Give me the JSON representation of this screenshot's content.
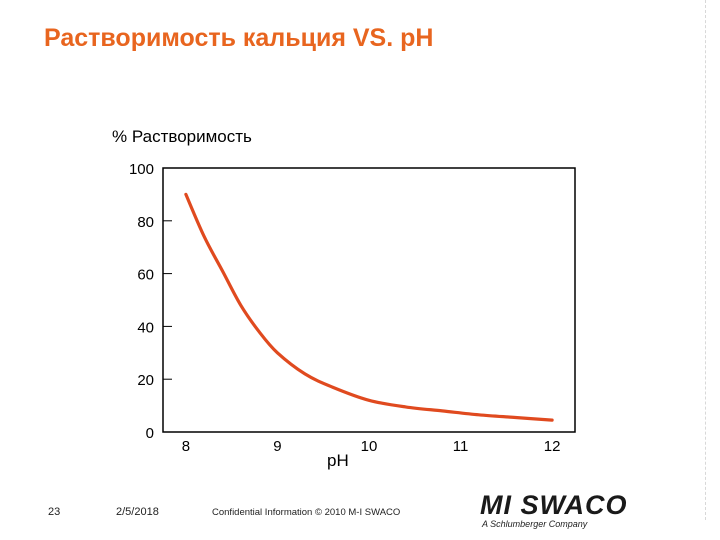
{
  "slide": {
    "title": "Растворимость кальция VS. pH",
    "page_number": "23",
    "date": "2/5/2018",
    "confidential": "Confidential Information © 2010 M-I SWACO",
    "logo_text": "MI SWACO",
    "logo_subtext": "A Schlumberger Company",
    "accent_color": "#e8651f"
  },
  "chart_data": {
    "type": "line",
    "title": "",
    "ylabel": "% Растворимость",
    "xlabel": "pH",
    "xlim": [
      7.75,
      12.25
    ],
    "ylim": [
      0,
      100
    ],
    "x_ticks": [
      8,
      9,
      10,
      11,
      12
    ],
    "y_ticks": [
      0,
      20,
      40,
      60,
      80,
      100
    ],
    "grid": false,
    "series": [
      {
        "color": "#e04a1f",
        "x": [
          8.0,
          8.2,
          8.4,
          8.6,
          8.8,
          9.0,
          9.3,
          9.6,
          10.0,
          10.4,
          10.8,
          11.2,
          11.6,
          12.0
        ],
        "y": [
          90,
          74,
          61,
          48,
          38,
          30,
          22,
          17,
          12,
          9.5,
          8,
          6.5,
          5.5,
          4.5
        ]
      }
    ]
  }
}
